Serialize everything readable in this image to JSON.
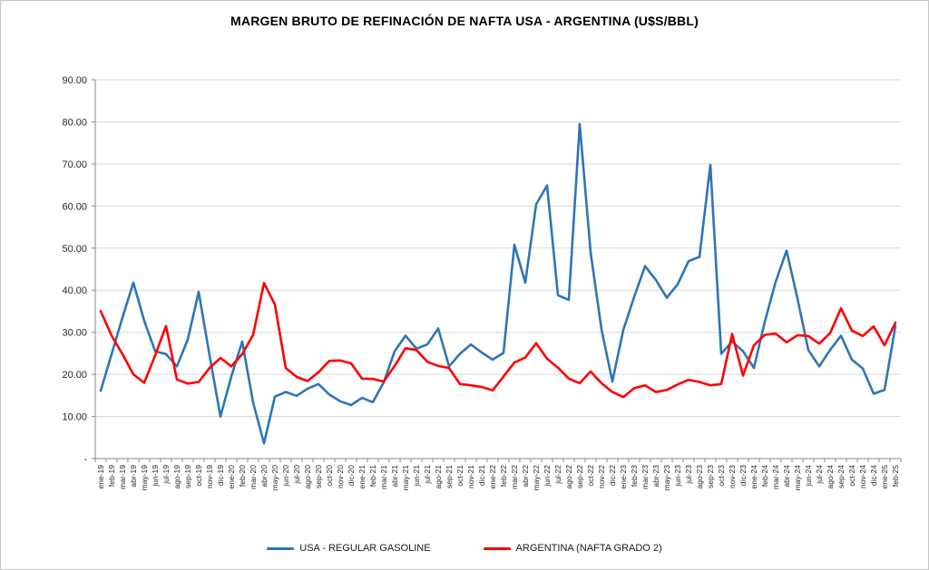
{
  "chart_data": {
    "type": "line",
    "title": "MARGEN BRUTO DE REFINACIÓN DE NAFTA USA - ARGENTINA (U$S/BBL)",
    "xlabel": "",
    "ylabel": "",
    "ylim": [
      0,
      90
    ],
    "ytick_step": 10,
    "ytick_labels": [
      "-",
      "10.00",
      "20.00",
      "30.00",
      "40.00",
      "50.00",
      "60.00",
      "70.00",
      "80.00",
      "90.00"
    ],
    "grid": true,
    "legend_position": "bottom",
    "categories": [
      "ene-19",
      "feb-19",
      "mar-19",
      "abr-19",
      "may-19",
      "jun-19",
      "jul-19",
      "ago-19",
      "sep-19",
      "oct-19",
      "nov-19",
      "dic-19",
      "ene-20",
      "feb-20",
      "mar-20",
      "abr-20",
      "may-20",
      "jun-20",
      "jul-20",
      "ago-20",
      "sep-20",
      "oct-20",
      "nov-20",
      "dic-20",
      "ene-21",
      "feb-21",
      "mar-21",
      "abr-21",
      "may-21",
      "jun-21",
      "jul-21",
      "ago-21",
      "sep-21",
      "oct-21",
      "nov-21",
      "dic-21",
      "ene-22",
      "feb-22",
      "mar-22",
      "abr-22",
      "may-22",
      "jun-22",
      "jul-22",
      "ago-22",
      "sep-22",
      "oct-22",
      "nov-22",
      "dic-22",
      "ene-23",
      "feb-23",
      "mar-23",
      "abr-23",
      "may-23",
      "jun-23",
      "jul-23",
      "ago-23",
      "sep-23",
      "oct-23",
      "nov-23",
      "dic-23",
      "ene-24",
      "feb-24",
      "mar-24",
      "abr-24",
      "may-24",
      "jun-24",
      "jul-24",
      "ago-24",
      "sep-24",
      "oct-24",
      "nov-24",
      "dic-24",
      "ene-25",
      "feb-25"
    ],
    "series": [
      {
        "name": "USA - REGULAR GASOLINE",
        "color": "#2E75B6",
        "values": [
          16.1,
          24.8,
          33.5,
          41.8,
          32.7,
          25.5,
          24.8,
          21.9,
          28.3,
          39.6,
          24.5,
          10.0,
          19.5,
          27.8,
          13.3,
          3.6,
          14.7,
          15.8,
          14.9,
          16.6,
          17.7,
          15.2,
          13.6,
          12.7,
          14.4,
          13.4,
          18.1,
          25.5,
          29.2,
          26.1,
          27.1,
          30.9,
          21.9,
          24.9,
          27.1,
          25.2,
          23.5,
          25.1,
          50.8,
          41.8,
          60.4,
          64.9,
          38.8,
          37.7,
          79.5,
          49.0,
          30.7,
          18.3,
          30.5,
          38.4,
          45.7,
          42.4,
          38.2,
          41.4,
          46.9,
          47.9,
          69.8,
          24.9,
          27.8,
          25.5,
          21.5,
          32.5,
          42.0,
          49.4,
          38.0,
          25.8,
          21.9,
          25.8,
          29.2,
          23.5,
          21.4,
          15.4,
          16.3,
          31.5
        ]
      },
      {
        "name": "ARGENTINA (NAFTA GRADO 2)",
        "color": "#FF0000",
        "values": [
          35.0,
          29.2,
          24.8,
          20.0,
          18.0,
          24.5,
          31.5,
          18.8,
          17.8,
          18.2,
          21.5,
          23.9,
          21.9,
          24.8,
          29.4,
          41.7,
          36.6,
          21.5,
          19.4,
          18.4,
          20.5,
          23.2,
          23.3,
          22.6,
          19.0,
          18.9,
          18.3,
          22.0,
          26.2,
          25.8,
          23.0,
          22.0,
          21.5,
          17.7,
          17.4,
          17.0,
          16.2,
          19.5,
          22.8,
          24.0,
          27.4,
          23.7,
          21.6,
          19.0,
          17.9,
          20.7,
          17.9,
          15.8,
          14.6,
          16.7,
          17.4,
          15.8,
          16.3,
          17.6,
          18.7,
          18.2,
          17.4,
          17.7,
          29.6,
          19.7,
          26.9,
          29.4,
          29.7,
          27.6,
          29.3,
          29.1,
          27.3,
          29.8,
          35.7,
          30.4,
          29.1,
          31.4,
          26.9,
          32.3
        ]
      }
    ],
    "colors": {
      "gridline": "#D9D9D9",
      "axis": "#898989",
      "tick_label": "#262626"
    }
  }
}
